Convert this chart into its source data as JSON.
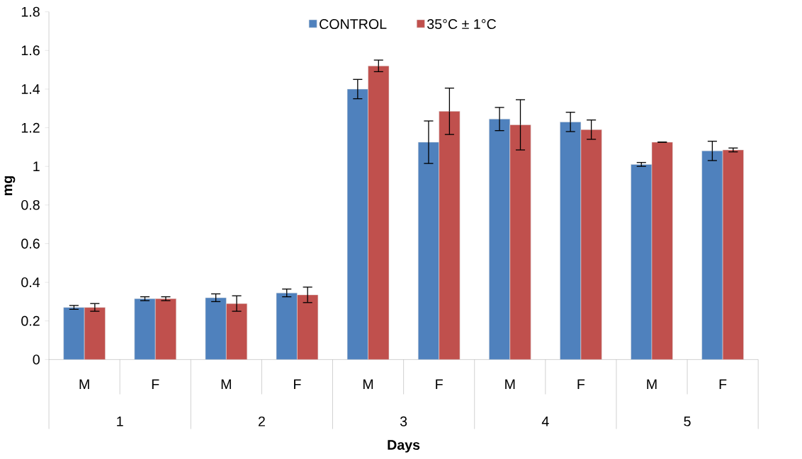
{
  "chart_data": {
    "type": "bar",
    "xlabel": "Days",
    "ylabel": "mg",
    "categories": [
      "M",
      "F",
      "M",
      "F",
      "M",
      "F",
      "M",
      "F",
      "M",
      "F"
    ],
    "annotations": [
      "1",
      "2",
      "3",
      "4",
      "5"
    ],
    "series": [
      {
        "name": "CONTROL",
        "color": "#4f81bd",
        "values": [
          0.27,
          0.315,
          0.32,
          0.345,
          1.4,
          1.125,
          1.245,
          1.23,
          1.01,
          1.08
        ],
        "errors": [
          0.01,
          0.01,
          0.02,
          0.02,
          0.05,
          0.11,
          0.06,
          0.05,
          0.01,
          0.05
        ]
      },
      {
        "name": "35°C ± 1°C",
        "color": "#c0504d",
        "values": [
          0.27,
          0.315,
          0.29,
          0.335,
          1.52,
          1.285,
          1.215,
          1.19,
          1.125,
          1.085
        ],
        "errors": [
          0.02,
          0.01,
          0.04,
          0.04,
          0.03,
          0.12,
          0.13,
          0.05,
          0,
          0.01
        ]
      }
    ],
    "ylim": [
      0,
      1.8
    ],
    "yticks": [
      0,
      0.2,
      0.4,
      0.6,
      0.8,
      1,
      1.2,
      1.4,
      1.6,
      1.8
    ],
    "legend": "top",
    "grid": false
  }
}
